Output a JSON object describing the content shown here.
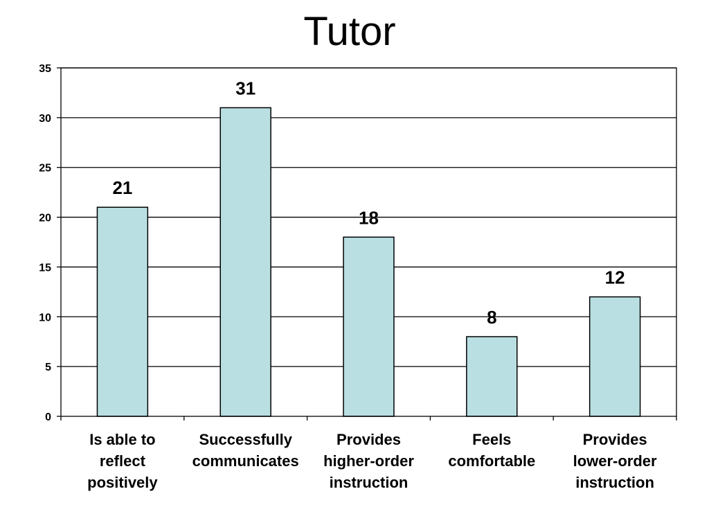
{
  "chart_data": {
    "type": "bar",
    "title": "Tutor",
    "categories": [
      "Is able to reflect positively",
      "Successfully communicates",
      "Provides higher-order instruction",
      "Feels comfortable",
      "Provides lower-order instruction"
    ],
    "category_label_lines": [
      [
        "Is able to",
        "reflect",
        "positively"
      ],
      [
        "Successfully",
        "communicates"
      ],
      [
        "Provides",
        "higher-order",
        "instruction"
      ],
      [
        "Feels",
        "comfortable"
      ],
      [
        "Provides",
        "lower-order",
        "instruction"
      ]
    ],
    "values": [
      21,
      31,
      18,
      8,
      12
    ],
    "data_labels": [
      "21",
      "31",
      "18",
      "8",
      "12"
    ],
    "ylim": [
      0,
      35
    ],
    "ytick_step": 5,
    "yticks": [
      "0",
      "5",
      "10",
      "15",
      "20",
      "25",
      "30",
      "35"
    ],
    "grid": true,
    "legend": "none",
    "bar_color": "#b9dfe2",
    "bar_edge_color": "#000000",
    "xlabel": "",
    "ylabel": ""
  }
}
